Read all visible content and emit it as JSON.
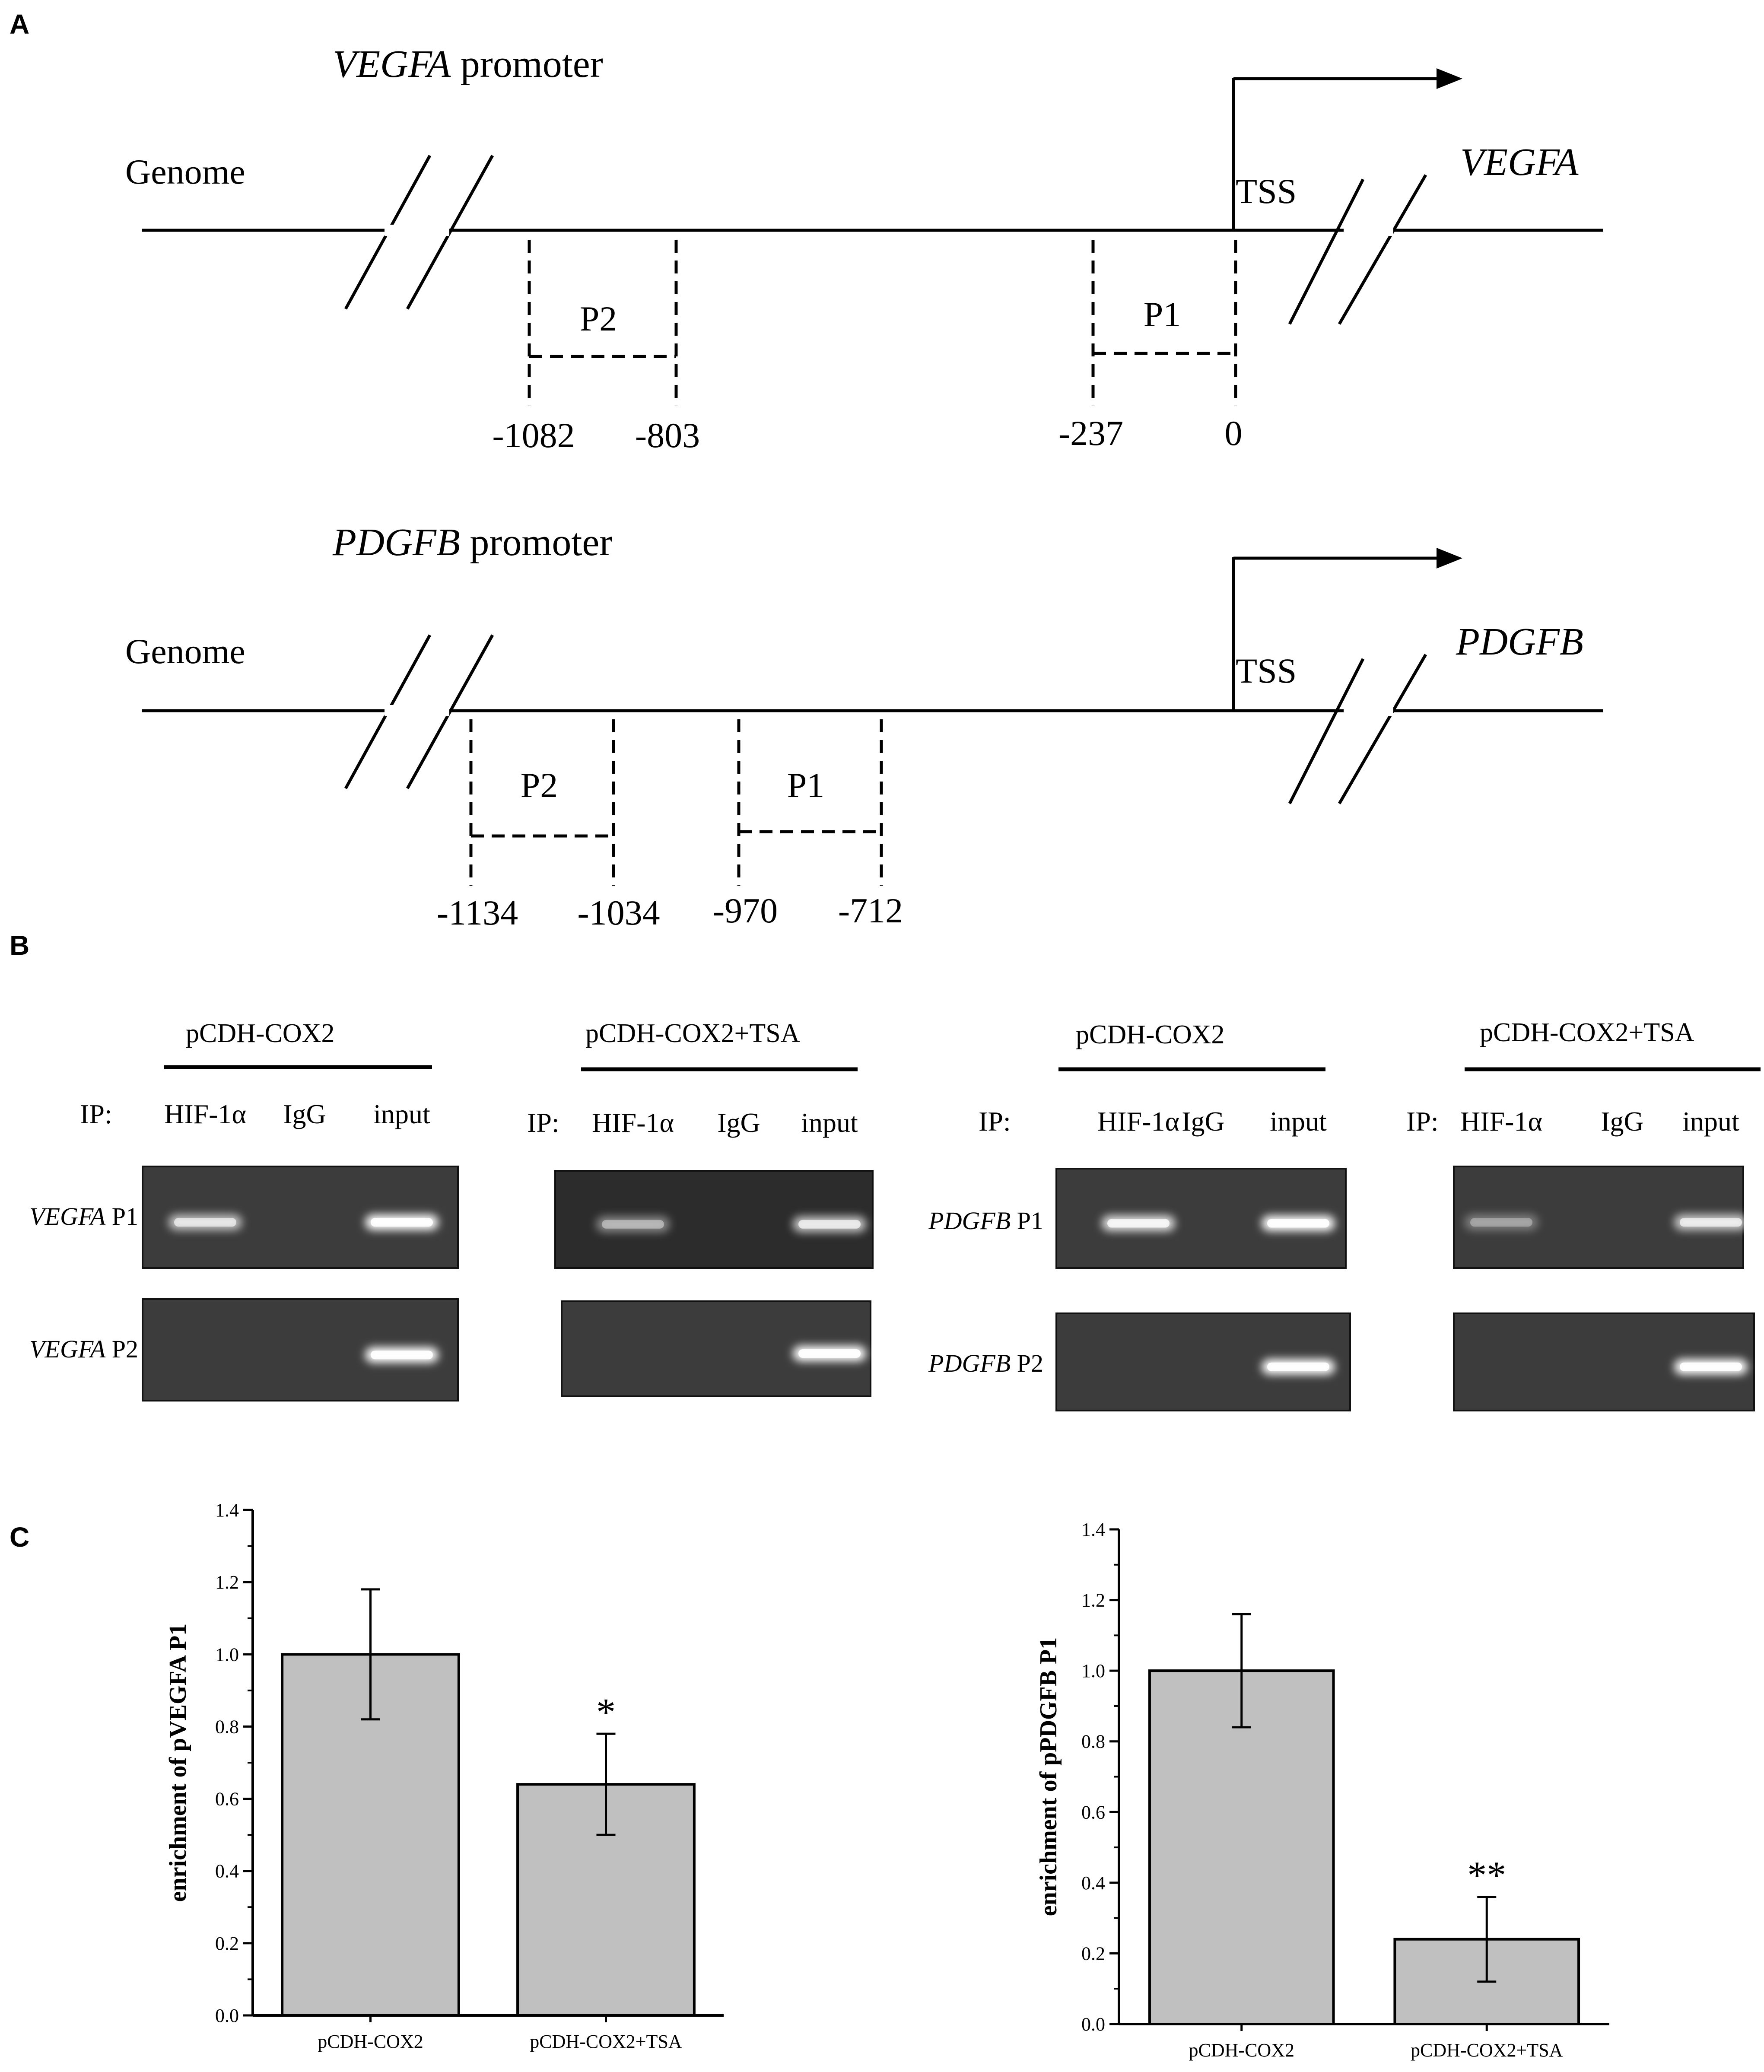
{
  "panels": {
    "a": "A",
    "b": "B",
    "c": "C"
  },
  "diagram": {
    "tracks": [
      {
        "gene": "VEGFA",
        "promoter_suffix": " promoter",
        "genome_label": "Genome",
        "tss_label": "TSS",
        "regions": [
          {
            "label": "P2",
            "start": "-1082",
            "end": "-803"
          },
          {
            "label": "P1",
            "start": "-237",
            "end": "0"
          }
        ]
      },
      {
        "gene": "PDGFB",
        "promoter_suffix": " promoter",
        "genome_label": "Genome",
        "tss_label": "TSS",
        "regions": [
          {
            "label": "P2",
            "start": "-1134",
            "end": "-1034"
          },
          {
            "label": "P1",
            "start": "-970",
            "end": "-712"
          }
        ]
      }
    ]
  },
  "gels": {
    "ip_prefix": "IP:",
    "lanes": [
      "HIF-1α",
      "IgG",
      "input"
    ],
    "groups": [
      {
        "condition": "pCDH-COX2",
        "rows": [
          {
            "gene": "VEGFA",
            "region": " P1",
            "bands": [
              0.7,
              0,
              1.0
            ]
          },
          {
            "gene": "VEGFA",
            "region": " P2",
            "bands": [
              0,
              0,
              1.0
            ]
          }
        ]
      },
      {
        "condition": "pCDH-COX2+TSA",
        "rows": [
          {
            "gene": "",
            "region": "",
            "bands": [
              0.45,
              0,
              0.75
            ]
          },
          {
            "gene": "",
            "region": "",
            "bands": [
              0,
              0,
              1.0
            ]
          }
        ]
      },
      {
        "condition": "pCDH-COX2",
        "rows": [
          {
            "gene": "PDGFB",
            "region": " P1",
            "bands": [
              0.85,
              0,
              1.0
            ]
          },
          {
            "gene": "PDGFB",
            "region": " P2",
            "bands": [
              0,
              0,
              1.0
            ]
          }
        ]
      },
      {
        "condition": "pCDH-COX2+TSA",
        "rows": [
          {
            "gene": "",
            "region": "",
            "bands": [
              0.35,
              0,
              0.75
            ]
          },
          {
            "gene": "",
            "region": "",
            "bands": [
              0,
              0,
              1.0
            ]
          }
        ]
      }
    ]
  },
  "chart_data": [
    {
      "type": "bar",
      "ylabel": "enrichment of  pVEGFA P1",
      "categories": [
        "pCDH-COX2",
        "pCDH-COX2+TSA"
      ],
      "values": [
        1.0,
        0.64
      ],
      "errors": [
        0.18,
        0.14
      ],
      "significance": [
        "",
        "*"
      ],
      "ylim": [
        0,
        1.4
      ],
      "yticks": [
        "0.0",
        "0.2",
        "0.4",
        "0.6",
        "0.8",
        "1.0",
        "1.2",
        "1.4"
      ],
      "bar_color": "#c0c0c0"
    },
    {
      "type": "bar",
      "ylabel": "enrichment of  pPDGFB P1",
      "categories": [
        "pCDH-COX2",
        "pCDH-COX2+TSA"
      ],
      "values": [
        1.0,
        0.24
      ],
      "errors": [
        0.16,
        0.12
      ],
      "significance": [
        "",
        "**"
      ],
      "ylim": [
        0,
        1.4
      ],
      "yticks": [
        "0.0",
        "0.2",
        "0.4",
        "0.6",
        "0.8",
        "1.0",
        "1.2",
        "1.4"
      ],
      "bar_color": "#c0c0c0"
    }
  ]
}
